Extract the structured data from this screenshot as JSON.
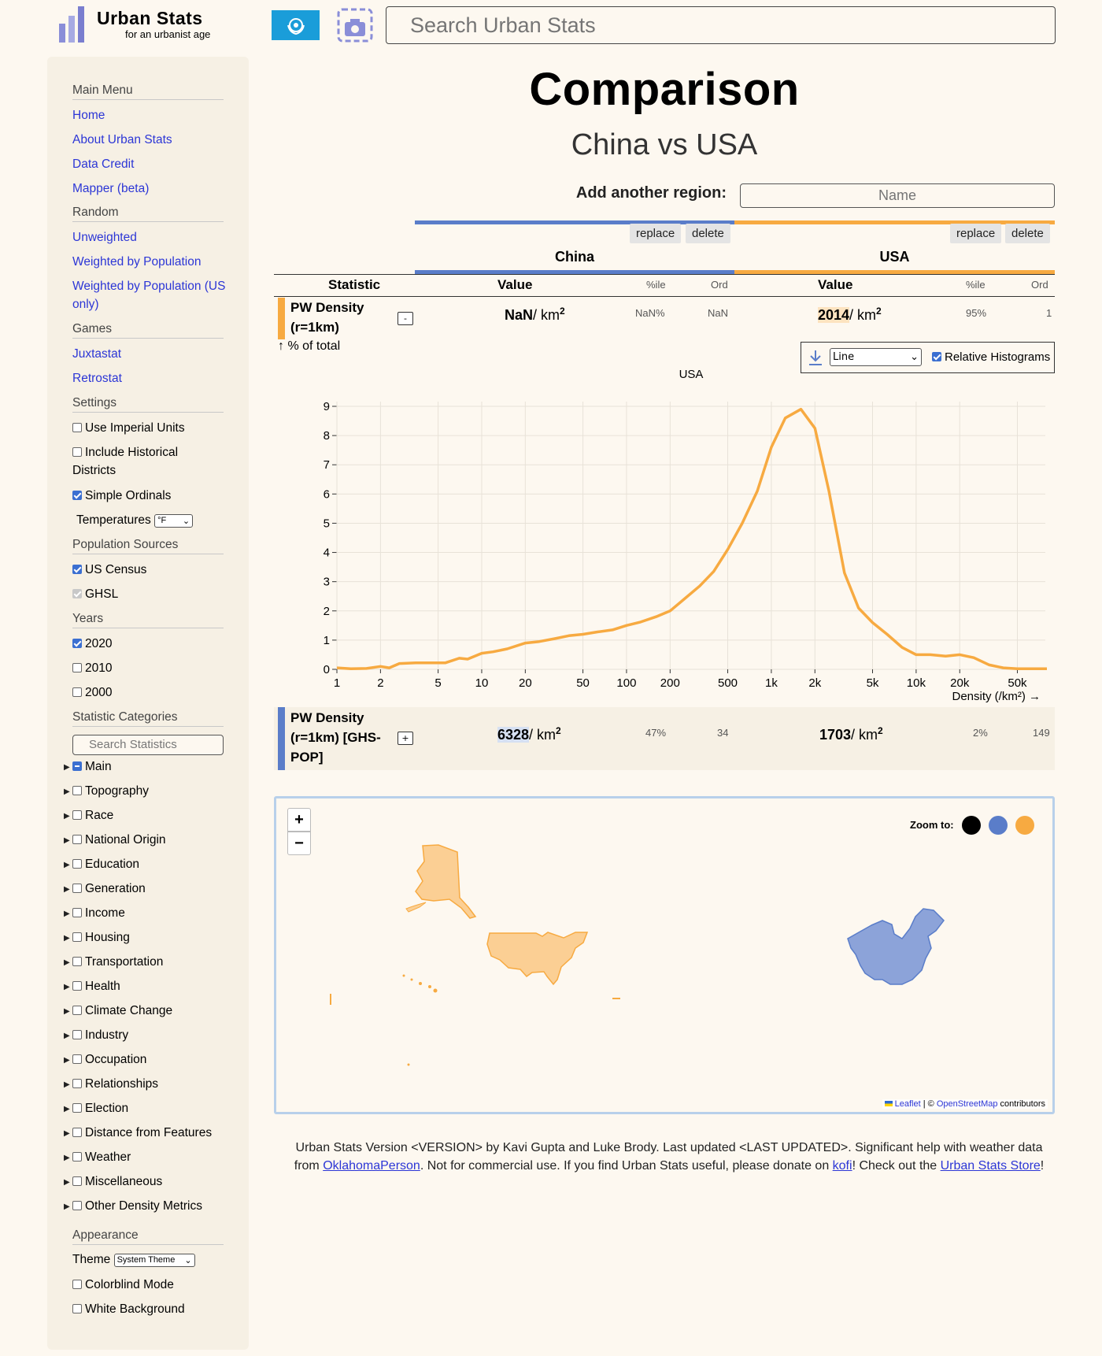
{
  "header": {
    "logo_title": "Urban Stats",
    "logo_tagline": "for an urbanist age",
    "search_placeholder": "Search Urban Stats"
  },
  "sidebar": {
    "main_menu": "Main Menu",
    "menu_items": [
      "Home",
      "About Urban Stats",
      "Data Credit",
      "Mapper (beta)"
    ],
    "random": "Random",
    "random_items": [
      "Unweighted",
      "Weighted by Population",
      "Weighted by Population (US",
      "only)"
    ],
    "games": "Games",
    "game_items": [
      "Juxtastat",
      "Retrostat"
    ],
    "settings": "Settings",
    "imperial": "Use Imperial Units",
    "historical_1": "Include Historical",
    "historical_2": "Districts",
    "simple_ordinals": "Simple Ordinals",
    "temperatures": "Temperatures",
    "temp_unit": "°F",
    "pop_sources": "Population Sources",
    "us_census": "US Census",
    "ghsl": "GHSL",
    "years": "Years",
    "year_items": [
      "2020",
      "2010",
      "2000"
    ],
    "stat_categories": "Statistic Categories",
    "search_stats": "Search Statistics",
    "categories": [
      "Main",
      "Topography",
      "Race",
      "National Origin",
      "Education",
      "Generation",
      "Income",
      "Housing",
      "Transportation",
      "Health",
      "Climate Change",
      "Industry",
      "Occupation",
      "Relationships",
      "Election",
      "Distance from Features",
      "Weather",
      "Miscellaneous",
      "Other Density Metrics"
    ],
    "appearance": "Appearance",
    "theme": "Theme",
    "theme_value": "System Theme",
    "colorblind": "Colorblind Mode",
    "white_bg": "White Background"
  },
  "main": {
    "title": "Comparison",
    "subtitle": "China vs USA",
    "add_region": "Add another region:",
    "add_placeholder": "Name",
    "replace": "replace",
    "delete": "delete",
    "regions": [
      {
        "name": "China",
        "color": "#5a7dc9"
      },
      {
        "name": "USA",
        "color": "#f7aa41"
      }
    ],
    "columns": {
      "statistic": "Statistic",
      "value": "Value",
      "pctile": "%ile",
      "ord": "Ord"
    },
    "rows": [
      {
        "label_1": "PW Density",
        "label_2": "(r=1km)",
        "toggle": "-",
        "china_value": "NaN",
        "china_unit": "/ km",
        "china_pctile": "NaN%",
        "china_ord": "NaN",
        "usa_value": "2014",
        "usa_unit": "/ km",
        "usa_pctile": "95%",
        "usa_ord": "1"
      },
      {
        "label_1": "PW Density",
        "label_2": "(r=1km) [GHS-",
        "label_3": "POP]",
        "toggle": "+",
        "china_value": "6328",
        "china_unit": "/ km",
        "china_pctile": "47%",
        "china_ord": "34",
        "usa_value": "1703",
        "usa_unit": "/ km",
        "usa_pctile": "2%",
        "usa_ord": "149"
      }
    ],
    "pct_total": "↑ % of total",
    "hist_type": "Line",
    "relative_hist": "Relative Histograms"
  },
  "chart_data": {
    "type": "line",
    "title": "USA",
    "xlabel": "Density (/km²) →",
    "ylabel": "",
    "x_scale": "log",
    "x_ticks": [
      1,
      2,
      5,
      10,
      20,
      50,
      100,
      200,
      500,
      1000,
      2000,
      5000,
      10000,
      20000,
      50000
    ],
    "x_tick_labels": [
      "1",
      "2",
      "5",
      "10",
      "20",
      "50",
      "100",
      "200",
      "500",
      "1k",
      "2k",
      "5k",
      "10k",
      "20k",
      "50k"
    ],
    "ylim": [
      0,
      9
    ],
    "y_ticks": [
      0,
      1,
      2,
      3,
      4,
      5,
      6,
      7,
      8,
      9
    ],
    "grid": true,
    "series": [
      {
        "name": "USA",
        "color": "#f7aa41",
        "x": [
          1,
          1.25,
          1.6,
          2,
          2.3,
          2.7,
          3.5,
          4.5,
          5.6,
          7,
          8,
          10,
          12,
          15,
          20,
          25,
          32,
          40,
          50,
          63,
          80,
          100,
          125,
          160,
          200,
          250,
          320,
          400,
          500,
          630,
          800,
          1000,
          1250,
          1600,
          2000,
          2500,
          3200,
          4000,
          5000,
          6300,
          8000,
          10000,
          12500,
          16000,
          20000,
          25000,
          32000,
          40000,
          50000,
          63000,
          80000
        ],
        "y": [
          0.05,
          0.02,
          0.03,
          0.1,
          0.05,
          0.2,
          0.22,
          0.22,
          0.22,
          0.38,
          0.35,
          0.55,
          0.6,
          0.7,
          0.9,
          0.95,
          1.05,
          1.15,
          1.2,
          1.28,
          1.35,
          1.5,
          1.62,
          1.8,
          2.0,
          2.4,
          2.85,
          3.35,
          4.1,
          5.0,
          6.1,
          7.6,
          8.6,
          8.9,
          8.25,
          6.1,
          3.3,
          2.1,
          1.6,
          1.2,
          0.75,
          0.5,
          0.5,
          0.45,
          0.5,
          0.4,
          0.15,
          0.05,
          0.02,
          0.02,
          0.02
        ]
      }
    ]
  },
  "map": {
    "zoom_to": "Zoom to:",
    "zoom_in": "+",
    "zoom_out": "−",
    "attr_leaflet": "Leaflet",
    "attr_sep": " | © ",
    "attr_osm": "OpenStreetMap",
    "attr_contrib": " contributors",
    "dot_colors": [
      "#000000",
      "#5a7dc9",
      "#f7aa41"
    ]
  },
  "footer": {
    "part1": "Urban Stats Version <VERSION> by Kavi Gupta and Luke Brody. Last updated <LAST UPDATED>. Significant help with weather data from ",
    "link1": "OklahomaPerson",
    "part2": ". Not for commercial use. If you find Urban Stats useful, please donate on ",
    "link2": "kofi",
    "part3": "! Check out the ",
    "link3": "Urban Stats Store",
    "part4": "!"
  }
}
